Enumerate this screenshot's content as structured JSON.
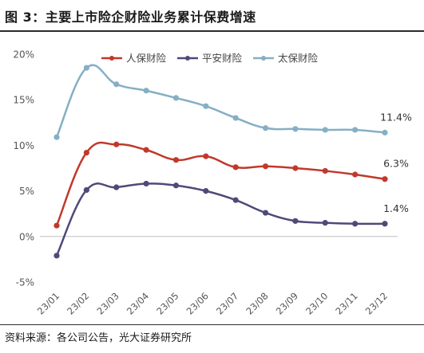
{
  "title": "图 3：主要上市险企财险业务累计保费增速",
  "source": "资料来源：各公司公告，光大证券研究所",
  "chart_data": {
    "type": "line",
    "categories": [
      "23/01",
      "23/02",
      "23/03",
      "23/04",
      "23/05",
      "23/06",
      "23/07",
      "23/08",
      "23/09",
      "23/10",
      "23/11",
      "23/12"
    ],
    "ylim": [
      -5,
      20
    ],
    "yticks": [
      -5,
      0,
      5,
      10,
      15,
      20
    ],
    "ytick_labels": [
      "-5%",
      "0%",
      "5%",
      "10%",
      "15%",
      "20%"
    ],
    "grid": false,
    "legend_position": "top",
    "series": [
      {
        "name": "人保财险",
        "color": "#C0392B",
        "values": [
          1.2,
          9.2,
          10.1,
          9.5,
          8.4,
          8.8,
          7.6,
          7.7,
          7.5,
          7.2,
          6.8,
          6.3
        ],
        "end_label": "6.3%"
      },
      {
        "name": "平安财险",
        "color": "#4E4A78",
        "values": [
          -2.1,
          5.1,
          5.4,
          5.8,
          5.6,
          5.0,
          4.0,
          2.6,
          1.7,
          1.5,
          1.4,
          1.4
        ],
        "end_label": "1.4%"
      },
      {
        "name": "太保财险",
        "color": "#85AFC4",
        "values": [
          10.9,
          18.5,
          16.7,
          16.0,
          15.2,
          14.3,
          13.0,
          11.9,
          11.8,
          11.7,
          11.7,
          11.4
        ],
        "end_label": "11.4%"
      }
    ]
  }
}
